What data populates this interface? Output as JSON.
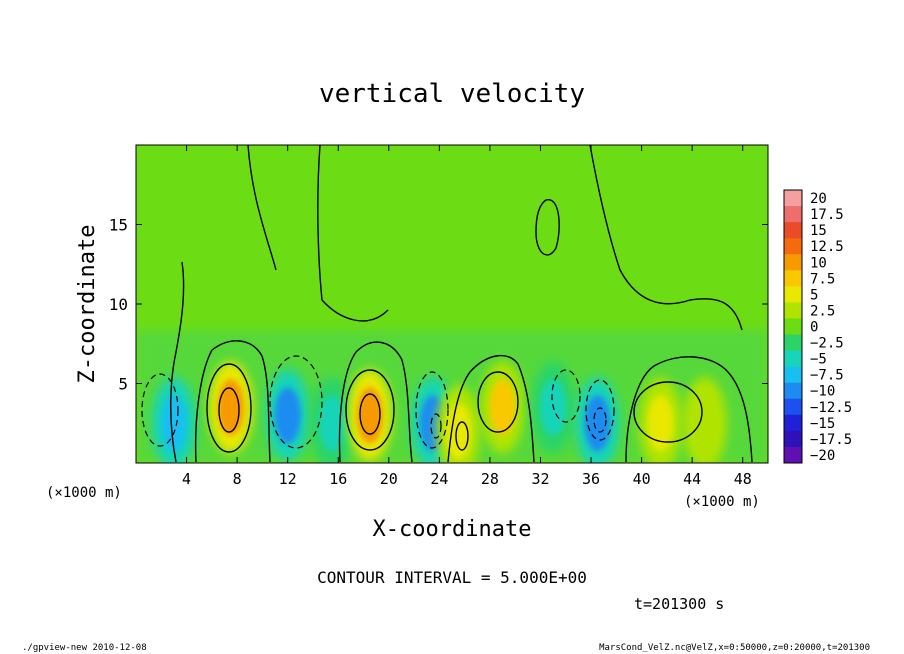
{
  "chart_data": {
    "type": "heatmap",
    "title": "vertical velocity",
    "xlabel": "X-coordinate",
    "ylabel": "Z-coordinate",
    "x_unit_left": "(×1000 m)",
    "x_unit_right": "(×1000 m)",
    "xlim": [
      0,
      50
    ],
    "ylim": [
      0,
      20
    ],
    "x_ticks": [
      4,
      8,
      12,
      16,
      20,
      24,
      28,
      32,
      36,
      40,
      44,
      48
    ],
    "y_ticks": [
      5,
      10,
      15
    ],
    "contour_interval_text": "CONTOUR INTERVAL = 5.000E+00",
    "time_text": "t=201300 s",
    "footer_left": "./gpview-new  2010-12-08",
    "footer_right": "MarsCond_VelZ.nc@VelZ,x=0:50000,z=0:20000,t=201300",
    "colorbar": {
      "levels": [
        "20",
        "17.5",
        "15",
        "12.5",
        "10",
        "7.5",
        "5",
        "2.5",
        "0",
        "−2.5",
        "−5",
        "−7.5",
        "−10",
        "−12.5",
        "−15",
        "−17.5",
        "−20"
      ],
      "colors": [
        "#f4a0a0",
        "#ee6e6e",
        "#ea4b28",
        "#f36b0c",
        "#f79a00",
        "#f9c800",
        "#e8e800",
        "#b0e400",
        "#6cdc14",
        "#2cd468",
        "#18d4b8",
        "#18c0f0",
        "#1c8cf0",
        "#1c50f0",
        "#2020d8",
        "#3010b8",
        "#6010b0"
      ]
    },
    "cells": [
      {
        "x": 3.0,
        "z": 2.5,
        "value": -8
      },
      {
        "x": 7.5,
        "z": 3.5,
        "value": 11
      },
      {
        "x": 12.0,
        "z": 3.0,
        "value": -9
      },
      {
        "x": 15.5,
        "z": 2.5,
        "value": -5
      },
      {
        "x": 18.5,
        "z": 3.0,
        "value": 11
      },
      {
        "x": 23.5,
        "z": 2.5,
        "value": -10
      },
      {
        "x": 25.5,
        "z": 2.0,
        "value": 6
      },
      {
        "x": 29.0,
        "z": 3.5,
        "value": 7
      },
      {
        "x": 33.0,
        "z": 3.5,
        "value": -6
      },
      {
        "x": 36.5,
        "z": 2.5,
        "value": -11
      },
      {
        "x": 41.5,
        "z": 2.5,
        "value": 6
      },
      {
        "x": 45.0,
        "z": 2.5,
        "value": 3
      }
    ]
  }
}
